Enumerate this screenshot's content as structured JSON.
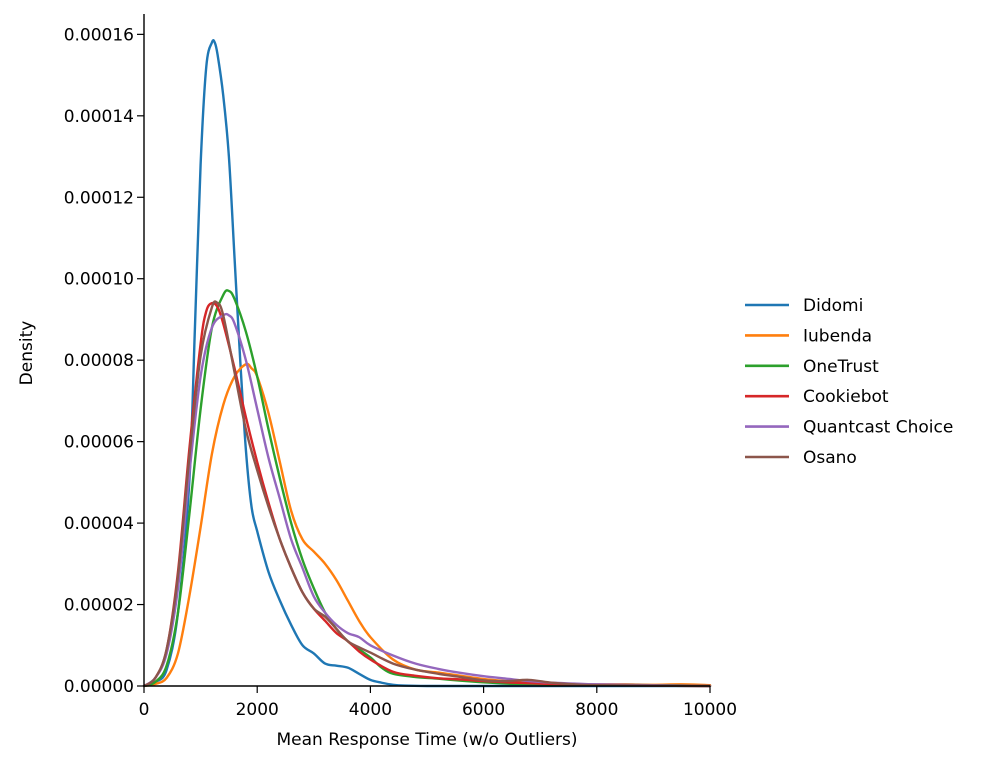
{
  "chart_data": {
    "type": "line",
    "title": "",
    "xlabel": "Mean Response Time (w/o Outliers)",
    "ylabel": "Density",
    "xlim": [
      0,
      10000
    ],
    "ylim": [
      0,
      0.000165
    ],
    "x_ticks": [
      0,
      2000,
      4000,
      6000,
      8000,
      10000
    ],
    "x_tick_labels": [
      "0",
      "2000",
      "4000",
      "6000",
      "8000",
      "10000"
    ],
    "y_ticks": [
      0,
      2e-05,
      4e-05,
      6e-05,
      8e-05,
      0.0001,
      0.00012,
      0.00014,
      0.00016
    ],
    "y_tick_labels": [
      "0.00000",
      "0.00002",
      "0.00004",
      "0.00006",
      "0.00008",
      "0.00010",
      "0.00012",
      "0.00014",
      "0.00016"
    ],
    "grid": false,
    "legend_position": "right",
    "series": [
      {
        "name": "Didomi",
        "color": "#1f77b4",
        "x": [
          0,
          200,
          400,
          600,
          800,
          900,
          1000,
          1100,
          1200,
          1250,
          1300,
          1400,
          1500,
          1600,
          1700,
          1800,
          1900,
          2000,
          2200,
          2400,
          2600,
          2800,
          3000,
          3200,
          3400,
          3600,
          3800,
          4000,
          4200,
          4400,
          4600,
          5000,
          6000,
          7000,
          8000,
          10000
        ],
        "y": [
          0,
          1e-06,
          4e-06,
          1.8e-05,
          5e-05,
          8.8e-05,
          0.000128,
          0.000152,
          0.000158,
          0.000158,
          0.000155,
          0.000145,
          0.00013,
          0.000105,
          8e-05,
          5.8e-05,
          4.4e-05,
          3.8e-05,
          2.8e-05,
          2.1e-05,
          1.5e-05,
          1e-05,
          8e-06,
          5.5e-06,
          5e-06,
          4.5e-06,
          3e-06,
          1.5e-06,
          8e-07,
          3e-07,
          1e-07,
          0,
          0,
          0,
          0,
          0
        ]
      },
      {
        "name": "Iubenda",
        "color": "#ff7f0e",
        "x": [
          0,
          200,
          400,
          600,
          800,
          1000,
          1200,
          1400,
          1600,
          1800,
          1900,
          2000,
          2200,
          2400,
          2600,
          2800,
          3000,
          3200,
          3400,
          3600,
          3800,
          4000,
          4400,
          4800,
          5200,
          5600,
          6000,
          6400,
          6800,
          7200,
          7600,
          8000,
          8500,
          9000,
          9500,
          10000
        ],
        "y": [
          0,
          5e-07,
          2e-06,
          8e-06,
          2.2e-05,
          3.9e-05,
          5.7e-05,
          6.9e-05,
          7.6e-05,
          7.9e-05,
          7.8e-05,
          7.6e-05,
          6.7e-05,
          5.5e-05,
          4.3e-05,
          3.6e-05,
          3.3e-05,
          3e-05,
          2.6e-05,
          2.1e-05,
          1.6e-05,
          1.2e-05,
          6.5e-06,
          4e-06,
          3.3e-06,
          2.5e-06,
          1.7e-06,
          1.2e-06,
          8e-07,
          5e-07,
          4e-07,
          4e-07,
          4e-07,
          3e-07,
          4e-07,
          2e-07
        ]
      },
      {
        "name": "OneTrust",
        "color": "#2ca02c",
        "x": [
          0,
          200,
          400,
          600,
          800,
          1000,
          1200,
          1400,
          1500,
          1600,
          1800,
          2000,
          2200,
          2400,
          2600,
          2800,
          3000,
          3200,
          3400,
          3600,
          3800,
          4000,
          4200,
          4400,
          4800,
          5200,
          5600,
          6000,
          6400,
          6800,
          7200,
          8000,
          9000,
          10000
        ],
        "y": [
          0,
          1e-06,
          5e-06,
          1.8e-05,
          4.2e-05,
          6.8e-05,
          8.8e-05,
          9.6e-05,
          9.7e-05,
          9.5e-05,
          8.7e-05,
          7.6e-05,
          6.3e-05,
          5.1e-05,
          4e-05,
          3.1e-05,
          2.4e-05,
          1.8e-05,
          1.4e-05,
          1.1e-05,
          9e-06,
          7e-06,
          4.5e-06,
          3e-06,
          2.2e-06,
          1.8e-06,
          1.3e-06,
          9e-07,
          6e-07,
          5e-07,
          4e-07,
          3e-07,
          2e-07,
          0
        ]
      },
      {
        "name": "Cookiebot",
        "color": "#d62728",
        "x": [
          0,
          200,
          400,
          600,
          800,
          1000,
          1100,
          1200,
          1300,
          1400,
          1600,
          1800,
          2000,
          2200,
          2400,
          2600,
          2800,
          3000,
          3200,
          3400,
          3600,
          3800,
          4000,
          4400,
          4800,
          5200,
          5600,
          6000,
          6400,
          6800,
          7200,
          8000,
          9000,
          10000
        ],
        "y": [
          0,
          2e-06,
          9e-06,
          2.8e-05,
          5.8e-05,
          8.4e-05,
          9.2e-05,
          9.4e-05,
          9.3e-05,
          8.9e-05,
          7.8e-05,
          6.6e-05,
          5.5e-05,
          4.5e-05,
          3.6e-05,
          2.9e-05,
          2.3e-05,
          1.9e-05,
          1.6e-05,
          1.3e-05,
          1.1e-05,
          8.5e-06,
          6.5e-06,
          3.5e-06,
          2.5e-06,
          1.9e-06,
          1.6e-06,
          1.2e-06,
          9e-07,
          7e-07,
          5e-07,
          3e-07,
          1e-07,
          0
        ]
      },
      {
        "name": "Quantcast Choice",
        "color": "#9467bd",
        "x": [
          0,
          200,
          400,
          600,
          800,
          1000,
          1200,
          1400,
          1500,
          1600,
          1800,
          2000,
          2200,
          2400,
          2600,
          2800,
          3000,
          3200,
          3400,
          3600,
          3800,
          4000,
          4400,
          4800,
          5200,
          5600,
          6000,
          6400,
          6800,
          7200,
          7600,
          8000,
          9000,
          10000
        ],
        "y": [
          0,
          2e-06,
          8e-06,
          2.4e-05,
          5.2e-05,
          7.6e-05,
          8.8e-05,
          9.1e-05,
          9.1e-05,
          8.9e-05,
          8e-05,
          6.8e-05,
          5.6e-05,
          4.6e-05,
          3.6e-05,
          2.9e-05,
          2.2e-05,
          1.8e-05,
          1.5e-05,
          1.3e-05,
          1.2e-05,
          1e-05,
          7.5e-06,
          5.5e-06,
          4.2e-06,
          3.2e-06,
          2.4e-06,
          1.8e-06,
          1.2e-06,
          8e-07,
          6e-07,
          4e-07,
          2e-07,
          0
        ]
      },
      {
        "name": "Osano",
        "color": "#8c564b",
        "x": [
          0,
          200,
          400,
          600,
          800,
          1000,
          1200,
          1300,
          1400,
          1600,
          1800,
          2000,
          2200,
          2400,
          2600,
          2800,
          3000,
          3200,
          3400,
          3600,
          3800,
          4000,
          4400,
          4800,
          5200,
          5600,
          6000,
          6400,
          6800,
          7200,
          7600,
          8000,
          9000,
          10000
        ],
        "y": [
          0,
          2e-06,
          9e-06,
          2.7e-05,
          5.6e-05,
          8.1e-05,
          9.3e-05,
          9.4e-05,
          9.1e-05,
          7.7e-05,
          6.3e-05,
          5.3e-05,
          4.4e-05,
          3.6e-05,
          2.9e-05,
          2.3e-05,
          1.9e-05,
          1.7e-05,
          1.4e-05,
          1.1e-05,
          9.5e-06,
          8.2e-06,
          5.5e-06,
          4e-06,
          3e-06,
          2.2e-06,
          1.4e-06,
          1.2e-06,
          1.5e-06,
          8e-07,
          4e-07,
          2e-07,
          1e-07,
          0
        ]
      }
    ]
  }
}
